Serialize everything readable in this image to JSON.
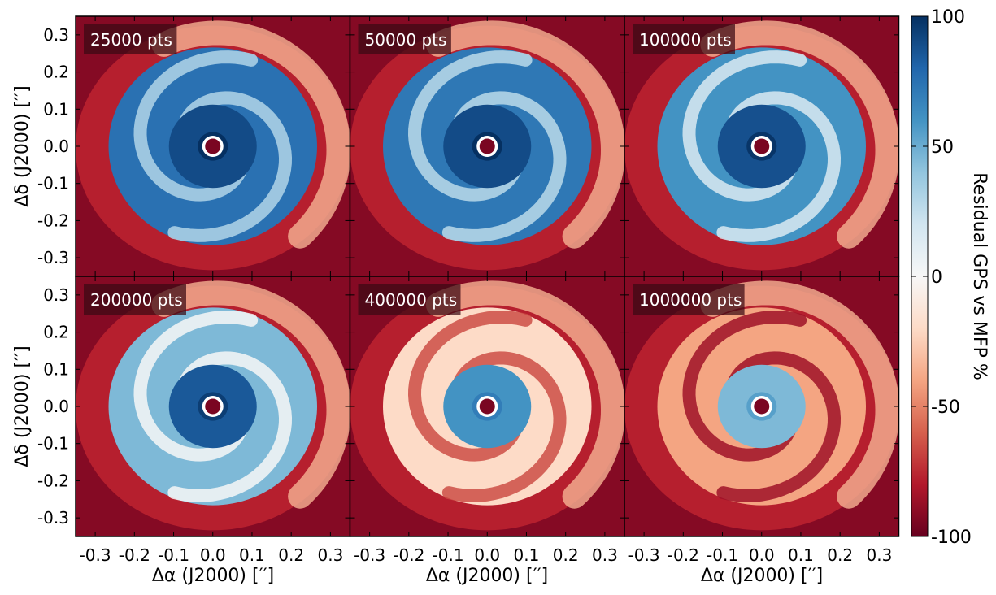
{
  "chart_data": {
    "type": "heatmap",
    "layout": "2x3 grid of map panels sharing axes",
    "xlabel": "Δα (J2000) [′′]",
    "ylabel": "Δδ (J2000) [′′]",
    "xlim": [
      -0.35,
      0.35
    ],
    "ylim": [
      -0.35,
      0.35
    ],
    "xticks": [
      -0.3,
      -0.2,
      -0.1,
      0.0,
      0.1,
      0.2,
      0.3
    ],
    "xtick_labels": [
      "-0.3",
      "-0.2",
      "-0.1",
      "0.0",
      "0.1",
      "0.2",
      "0.3"
    ],
    "yticks": [
      0.3,
      0.2,
      0.1,
      0.0,
      -0.1,
      -0.2,
      -0.3
    ],
    "ytick_labels": [
      "0.3",
      "0.2",
      "0.1",
      "0.0",
      "-0.1",
      "-0.2",
      "-0.3"
    ],
    "panels": [
      {
        "label": "25000 pts",
        "points": 25000,
        "disk_level": 75,
        "inner_level": 90
      },
      {
        "label": "50000 pts",
        "points": 50000,
        "disk_level": 72,
        "inner_level": 90
      },
      {
        "label": "100000 pts",
        "points": 100000,
        "disk_level": 60,
        "inner_level": 88
      },
      {
        "label": "200000 pts",
        "points": 200000,
        "disk_level": 45,
        "inner_level": 85
      },
      {
        "label": "400000 pts",
        "points": 400000,
        "disk_level": -20,
        "inner_level": 60
      },
      {
        "label": "1000000 pts",
        "points": 1000000,
        "disk_level": -40,
        "inner_level": 45
      }
    ],
    "colorbar": {
      "label": "Residual GPS vs MFP %",
      "range": [
        -100,
        100
      ],
      "ticks": [
        100,
        50,
        0,
        -50,
        -100
      ],
      "tick_labels": [
        "100",
        "50",
        "0",
        "-50",
        "-100"
      ],
      "colormap": [
        "#67001f",
        "#b2182b",
        "#d6604d",
        "#f4a582",
        "#fddbc7",
        "#f7f7f7",
        "#d1e5f0",
        "#92c5de",
        "#4393c3",
        "#2166ac",
        "#053061"
      ]
    }
  }
}
